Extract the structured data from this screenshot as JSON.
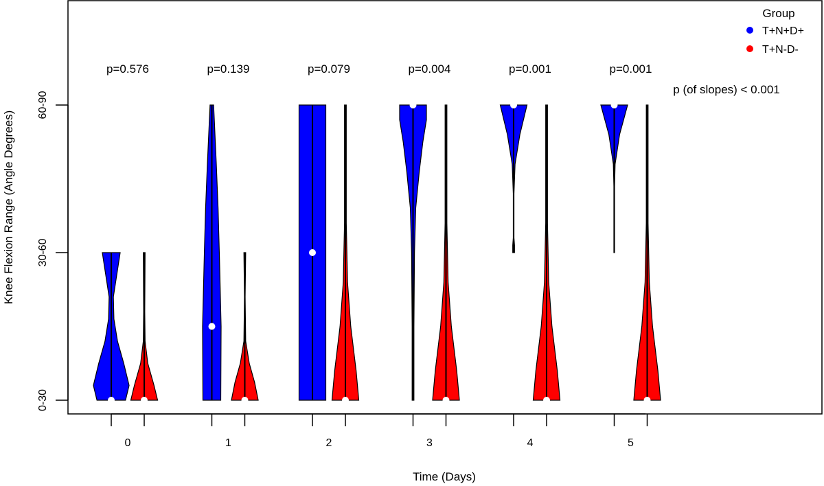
{
  "chart_data": {
    "type": "violin",
    "xlabel": "Time (Days)",
    "ylabel": "Knee Flexion Range (Angle Degrees)",
    "x_categories": [
      "0",
      "1",
      "2",
      "3",
      "4",
      "5"
    ],
    "y_categories": [
      "0-30",
      "30-60",
      "60-90"
    ],
    "y_codes": [
      1,
      2,
      3
    ],
    "ylim": [
      1,
      3
    ],
    "legend": {
      "title": "Group",
      "position": "top-right",
      "entries": [
        {
          "label": "T+N+D+",
          "color": "#0000FF"
        },
        {
          "label": "T+N-D-",
          "color": "#FF0000"
        }
      ]
    },
    "p_values": [
      "p=0.576",
      "p=0.139",
      "p=0.079",
      "p=0.004",
      "p=0.001",
      "p=0.001"
    ],
    "slope_annotation": "p (of slopes) < 0.001",
    "series": [
      {
        "name": "T+N+D+",
        "color": "#0000FF",
        "medians": [
          1.0,
          1.5,
          2.0,
          3.0,
          3.0,
          3.0
        ],
        "shapes": [
          [
            [
              1.0,
              0.8
            ],
            [
              1.1,
              1.0
            ],
            [
              1.25,
              0.7
            ],
            [
              1.4,
              0.35
            ],
            [
              1.55,
              0.15
            ],
            [
              1.7,
              0.12
            ],
            [
              2.0,
              0.5
            ]
          ],
          [
            [
              1.0,
              0.5
            ],
            [
              1.5,
              0.52
            ],
            [
              2.0,
              0.42
            ],
            [
              2.3,
              0.35
            ],
            [
              2.6,
              0.25
            ],
            [
              3.0,
              0.1
            ]
          ],
          [
            [
              1.0,
              0.75
            ],
            [
              1.5,
              0.75
            ],
            [
              2.0,
              0.75
            ],
            [
              2.5,
              0.75
            ],
            [
              3.0,
              0.75
            ]
          ],
          [
            [
              1.0,
              0.05
            ],
            [
              1.5,
              0.05
            ],
            [
              2.0,
              0.08
            ],
            [
              2.3,
              0.15
            ],
            [
              2.55,
              0.35
            ],
            [
              2.75,
              0.55
            ],
            [
              2.9,
              0.75
            ],
            [
              3.0,
              0.75
            ]
          ],
          [
            [
              2.0,
              0.05
            ],
            [
              2.05,
              0.05
            ],
            [
              2.1,
              0.02
            ],
            [
              2.4,
              0.02
            ],
            [
              2.6,
              0.08
            ],
            [
              2.8,
              0.35
            ],
            [
              3.0,
              0.75
            ]
          ],
          [
            [
              2.0,
              0.02
            ],
            [
              2.2,
              0.02
            ],
            [
              2.45,
              0.02
            ],
            [
              2.6,
              0.05
            ],
            [
              2.8,
              0.3
            ],
            [
              3.0,
              0.75
            ]
          ]
        ]
      },
      {
        "name": "T+N-D-",
        "color": "#FF0000",
        "medians": [
          1.0,
          1.0,
          1.0,
          1.0,
          1.0,
          1.0
        ],
        "shapes": [
          [
            [
              1.0,
              0.75
            ],
            [
              1.1,
              0.55
            ],
            [
              1.25,
              0.2
            ],
            [
              1.4,
              0.05
            ],
            [
              1.6,
              0.03
            ],
            [
              2.0,
              0.05
            ]
          ],
          [
            [
              1.0,
              0.75
            ],
            [
              1.12,
              0.55
            ],
            [
              1.25,
              0.25
            ],
            [
              1.4,
              0.05
            ],
            [
              1.7,
              0.02
            ],
            [
              2.0,
              0.05
            ]
          ],
          [
            [
              1.0,
              0.75
            ],
            [
              1.2,
              0.6
            ],
            [
              1.5,
              0.3
            ],
            [
              1.8,
              0.12
            ],
            [
              2.2,
              0.05
            ],
            [
              3.0,
              0.05
            ]
          ],
          [
            [
              1.0,
              0.75
            ],
            [
              1.2,
              0.6
            ],
            [
              1.5,
              0.3
            ],
            [
              1.8,
              0.12
            ],
            [
              2.2,
              0.05
            ],
            [
              3.0,
              0.05
            ]
          ],
          [
            [
              1.0,
              0.75
            ],
            [
              1.2,
              0.6
            ],
            [
              1.5,
              0.3
            ],
            [
              1.8,
              0.12
            ],
            [
              2.2,
              0.05
            ],
            [
              3.0,
              0.05
            ]
          ],
          [
            [
              1.0,
              0.75
            ],
            [
              1.2,
              0.6
            ],
            [
              1.5,
              0.3
            ],
            [
              1.8,
              0.12
            ],
            [
              2.2,
              0.05
            ],
            [
              3.0,
              0.05
            ]
          ]
        ]
      }
    ],
    "grid": false
  }
}
